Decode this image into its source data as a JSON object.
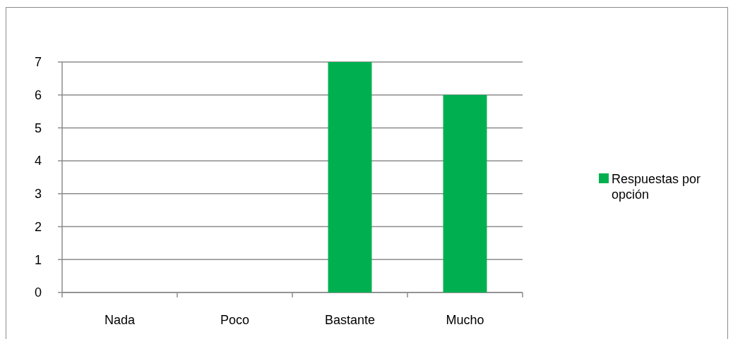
{
  "chart_data": {
    "type": "bar",
    "categories": [
      "Nada",
      "Poco",
      "Bastante",
      "Mucho"
    ],
    "series": [
      {
        "name": "Respuestas por opción",
        "color": "#00b050",
        "values": [
          0,
          0,
          7,
          6
        ]
      }
    ],
    "ylim": [
      0,
      7
    ],
    "yticks": [
      0,
      1,
      2,
      3,
      4,
      5,
      6,
      7
    ],
    "grid": "y",
    "legend": "right"
  }
}
